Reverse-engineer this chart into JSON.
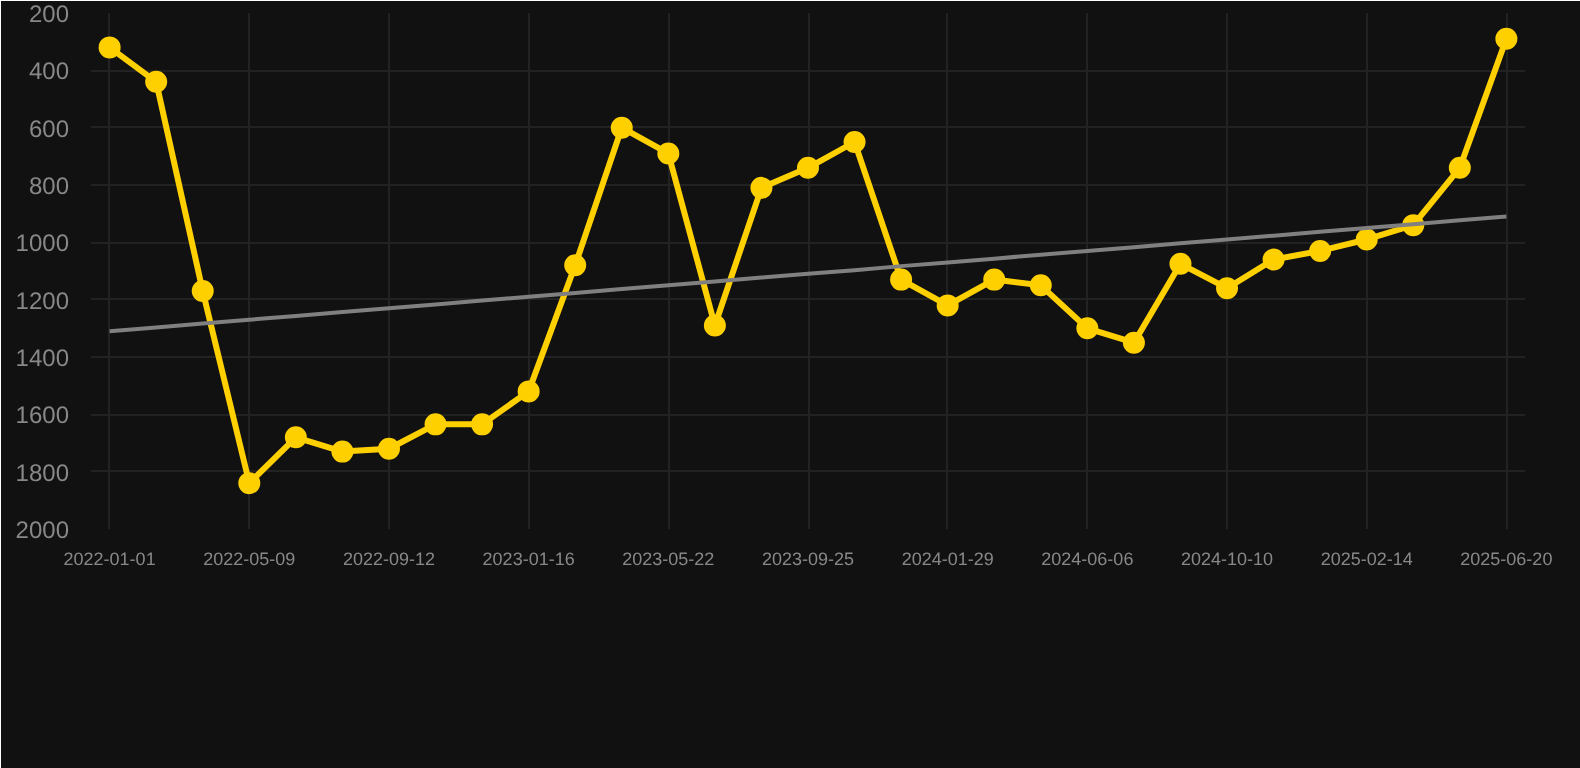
{
  "chart_data": {
    "type": "line",
    "categories": [
      "2022-01-01",
      null,
      null,
      "2022-05-09",
      null,
      null,
      "2022-09-12",
      null,
      null,
      "2023-01-16",
      null,
      null,
      "2023-05-22",
      null,
      null,
      "2023-09-25",
      null,
      null,
      "2024-01-29",
      null,
      null,
      "2024-06-06",
      null,
      null,
      "2024-10-10",
      null,
      null,
      "2025-02-14",
      null,
      null,
      "2025-06-20"
    ],
    "series": [
      {
        "color": "#ffd000",
        "marker": "circle",
        "values": [
          320,
          440,
          1170,
          1840,
          1680,
          1730,
          1720,
          1635,
          1635,
          1520,
          1080,
          600,
          690,
          1290,
          810,
          740,
          650,
          1130,
          1220,
          1130,
          1150,
          1300,
          1350,
          1075,
          1160,
          1060,
          1030,
          990,
          940,
          740,
          290
        ]
      },
      {
        "color": "#808080",
        "marker": "none",
        "values": [
          1310,
          1297,
          1283,
          1270,
          1257,
          1243,
          1230,
          1217,
          1203,
          1190,
          1177,
          1163,
          1150,
          1137,
          1123,
          1110,
          1097,
          1083,
          1070,
          1057,
          1043,
          1030,
          1017,
          1003,
          990,
          977,
          963,
          950,
          937,
          923,
          910
        ]
      }
    ],
    "ylim": [
      2000,
      200
    ],
    "yticks": [
      200,
      400,
      600,
      800,
      1000,
      1200,
      1400,
      1600,
      1800,
      2000
    ],
    "grid": true
  }
}
